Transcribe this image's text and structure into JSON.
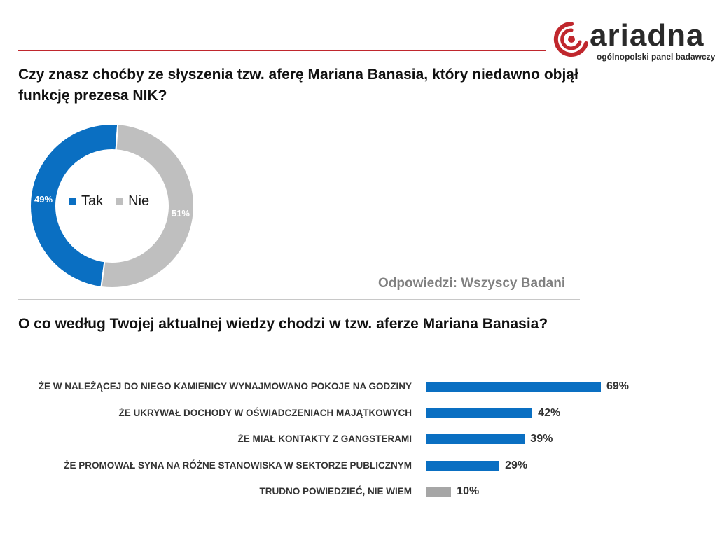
{
  "logo": {
    "wordmark": "ariadna",
    "tagline": "ogólnopolski panel badawczy"
  },
  "question1": "Czy znasz choćby ze słyszenia tzw. aferę Mariana Banasia, który niedawno objął funkcję prezesa NIK?",
  "question2": "O co według Twojej aktualnej wiedzy chodzi w tzw. aferze Mariana Banasia?",
  "basis_note": "Odpowiedzi: Wszyscy Badani",
  "colors": {
    "blue": "#0a6fc2",
    "gray": "#bfbfbf",
    "bar_gray": "#a6a6a6",
    "red": "#c0272d"
  },
  "chart_data": [
    {
      "type": "pie",
      "variant": "donut",
      "title": "",
      "slices": [
        {
          "label": "Tak",
          "value": 49,
          "display": "49%",
          "color": "#0a6fc2"
        },
        {
          "label": "Nie",
          "value": 51,
          "display": "51%",
          "color": "#bfbfbf"
        }
      ],
      "legend_position": "center"
    },
    {
      "type": "bar",
      "orientation": "horizontal",
      "title": "",
      "categories": [
        "ŻE W NALEŻĄCEJ  DO NIEGO KAMIENICY  WYNAJMOWANO  POKOJE NA GODZINY",
        "ŻE UKRYWAŁ  DOCHODY W OŚWIADCZENIACH  MAJĄTKOWYCH",
        "ŻE MIAŁ KONTAKTY  Z GANGSTERAMI",
        "ŻE PROMOWAŁ SYNA NA RÓŻNE STANOWISKA  W SEKTORZE PUBLICZNYM",
        "TRUDNO POWIEDZIEĆ, NIE WIEM"
      ],
      "values": [
        69,
        42,
        39,
        29,
        10
      ],
      "value_labels": [
        "69%",
        "42%",
        "39%",
        "29%",
        "10%"
      ],
      "colors": [
        "#0a6fc2",
        "#0a6fc2",
        "#0a6fc2",
        "#0a6fc2",
        "#a6a6a6"
      ],
      "xlim": [
        0,
        69
      ],
      "grid": false
    }
  ]
}
